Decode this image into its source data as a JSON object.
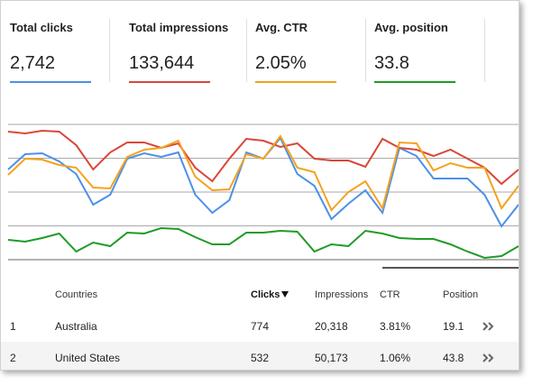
{
  "metrics": [
    {
      "label": "Total clicks",
      "value": "2,742"
    },
    {
      "label": "Total impressions",
      "value": "133,644"
    },
    {
      "label": "Avg. CTR",
      "value": "2.05%"
    },
    {
      "label": "Avg. position",
      "value": "33.8"
    }
  ],
  "chart_data": {
    "type": "line",
    "ylim": [
      0,
      150
    ],
    "yticks": [
      0,
      37.5,
      75,
      112.5,
      150
    ],
    "grid": true,
    "series": [
      {
        "color": "#4d90e8",
        "values": [
          100,
          117,
          118,
          109,
          95,
          61,
          72,
          112,
          118,
          114,
          119,
          72,
          52,
          66,
          119,
          112,
          135,
          95,
          82,
          45,
          62,
          77,
          52,
          124,
          115,
          90,
          90,
          90,
          72,
          37,
          61
        ]
      },
      {
        "color": "#d9473b",
        "values": [
          142,
          140,
          143,
          142,
          127,
          100,
          119,
          130,
          130,
          124,
          129,
          102,
          87,
          112,
          134,
          132,
          125,
          129,
          112,
          110,
          110,
          103,
          134,
          124,
          122,
          115,
          122,
          112,
          102,
          84,
          100
        ]
      },
      {
        "color": "#f4a21c",
        "values": [
          94,
          112,
          111,
          105,
          102,
          80,
          79,
          114,
          122,
          124,
          132,
          92,
          77,
          78,
          117,
          112,
          137,
          102,
          97,
          55,
          75,
          87,
          57,
          130,
          129,
          99,
          107,
          102,
          102,
          57,
          82
        ]
      },
      {
        "color": "#1f9b27",
        "values": [
          22,
          20,
          24,
          29,
          9,
          19,
          15,
          30,
          29,
          35,
          34,
          25,
          17,
          17,
          30,
          30,
          32,
          31,
          9,
          17,
          15,
          32,
          29,
          24,
          23,
          23,
          17,
          9,
          2,
          4,
          15
        ]
      }
    ]
  },
  "table": {
    "header": [
      "Countries",
      "Clicks",
      "Impressions",
      "CTR",
      "Position"
    ],
    "rows": [
      [
        "1",
        "Australia",
        "774",
        "20,318",
        "3.81%",
        "19.1"
      ],
      [
        "2",
        "United States",
        "532",
        "50,173",
        "1.06%",
        "43.8"
      ]
    ]
  }
}
